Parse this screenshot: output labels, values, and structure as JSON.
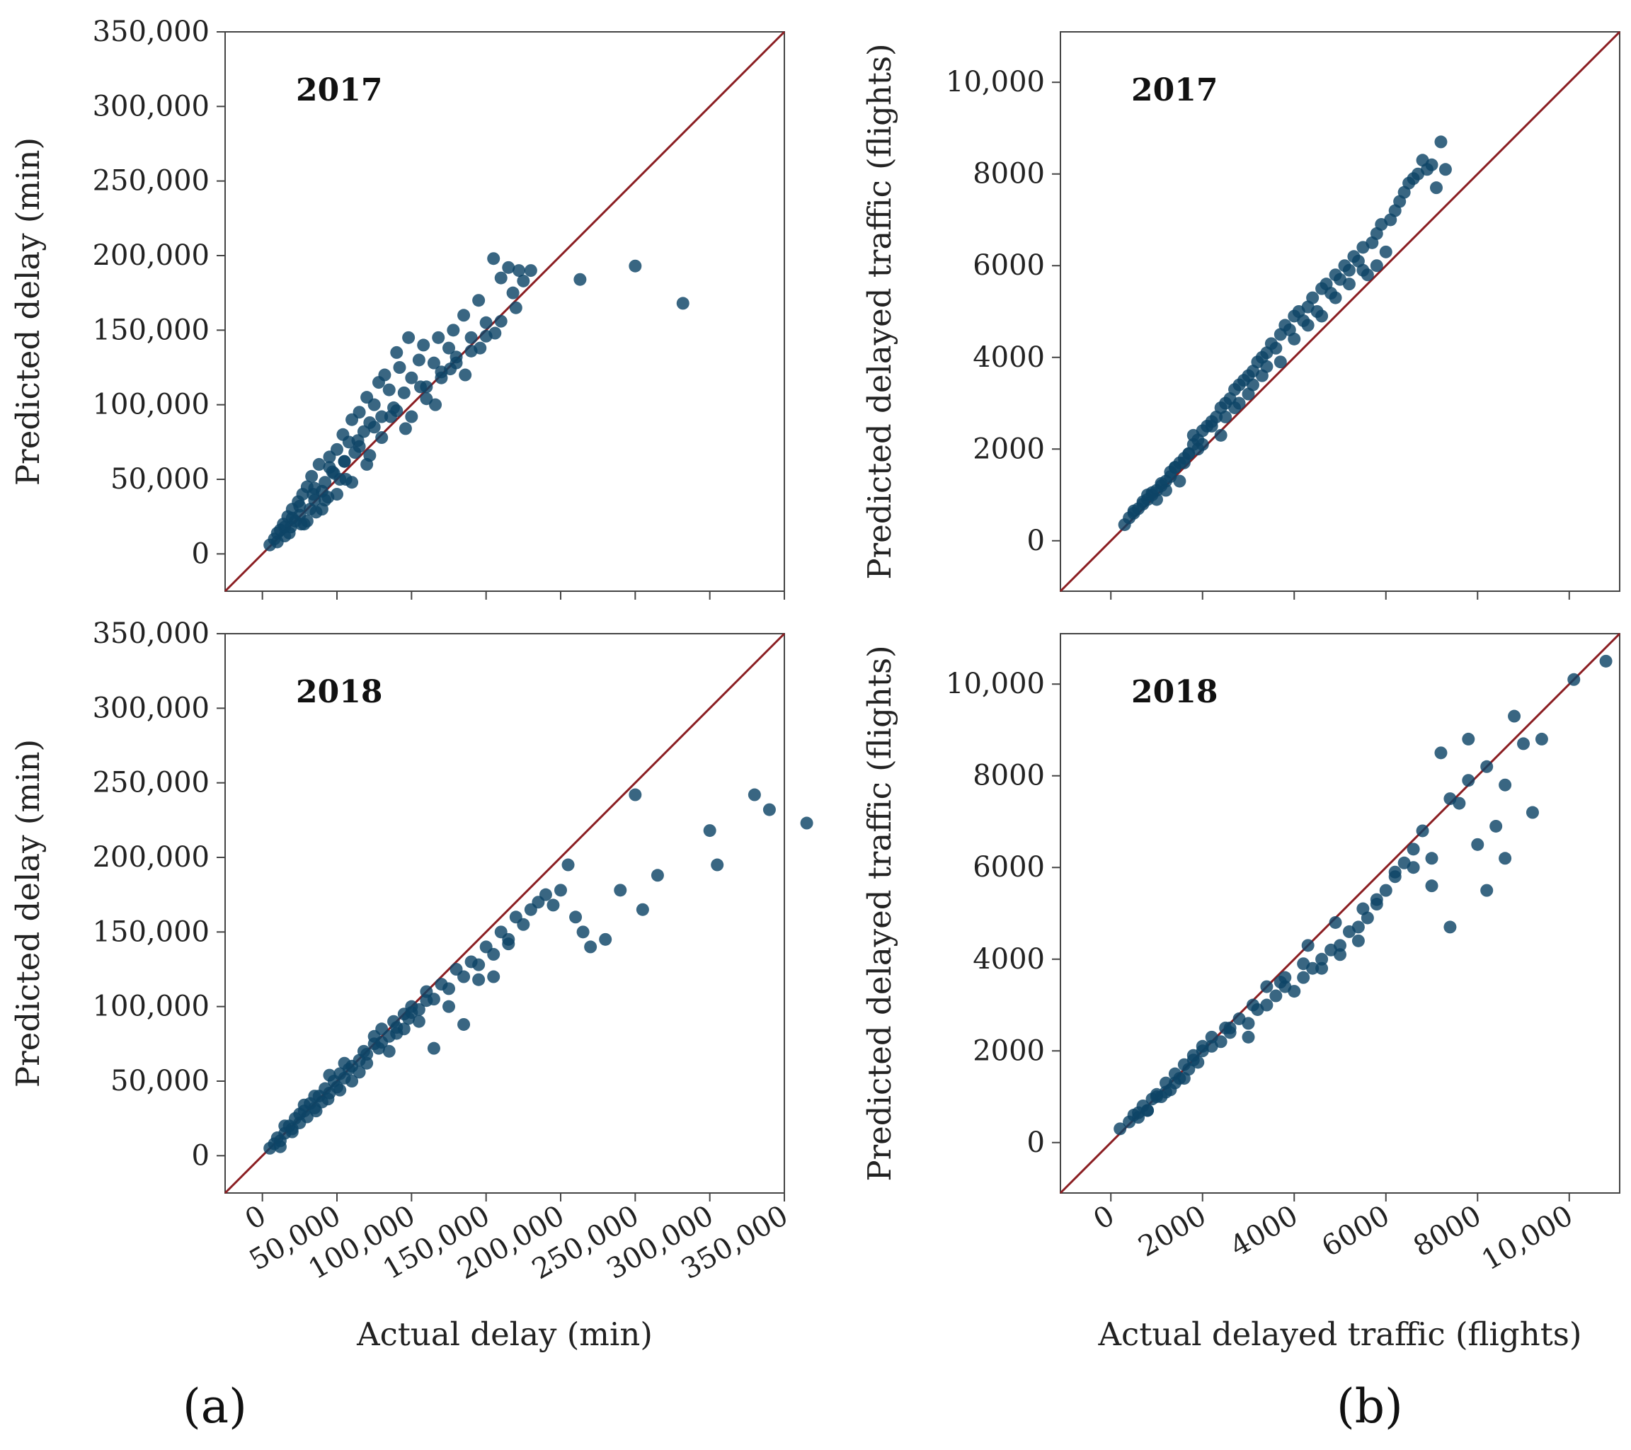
{
  "figure": {
    "panel_labels": [
      "(a)",
      "(b)"
    ],
    "colors": {
      "points": "#0d4466",
      "diagonal": "#8b1e22",
      "frame": "#444444"
    }
  },
  "chart_data": [
    {
      "type": "scatter",
      "id": "a-2017",
      "year_label": "2017",
      "ylabel": "Predicted delay (min)",
      "xlabel": "",
      "xlim": [
        -25000,
        350000
      ],
      "ylim": [
        -25000,
        350000
      ],
      "xticks": [
        0,
        50000,
        100000,
        150000,
        200000,
        250000,
        300000,
        350000
      ],
      "yticks": [
        0,
        50000,
        100000,
        150000,
        200000,
        250000,
        300000,
        350000
      ],
      "ytick_labels": [
        "0",
        "50,000",
        "100,000",
        "150,000",
        "200,000",
        "250,000",
        "300,000",
        "350,000"
      ],
      "xtick_labels": [],
      "diagonal": true,
      "x": [
        5000,
        8000,
        10000,
        12000,
        14000,
        15000,
        17000,
        19000,
        20000,
        22000,
        24000,
        25000,
        27000,
        28000,
        30000,
        32000,
        33000,
        35000,
        36000,
        38000,
        40000,
        42000,
        44000,
        45000,
        47000,
        50000,
        52000,
        54000,
        55000,
        58000,
        60000,
        62000,
        65000,
        68000,
        70000,
        72000,
        75000,
        78000,
        80000,
        82000,
        85000,
        88000,
        90000,
        92000,
        95000,
        98000,
        100000,
        105000,
        108000,
        110000,
        115000,
        118000,
        120000,
        125000,
        128000,
        130000,
        135000,
        140000,
        145000,
        150000,
        155000,
        160000,
        165000,
        168000,
        170000,
        172000,
        175000,
        180000,
        213000,
        250000,
        282000,
        15000,
        20000,
        25000,
        30000,
        35000,
        40000,
        45000,
        50000,
        55000,
        60000,
        65000,
        70000,
        75000,
        80000,
        90000,
        100000,
        110000,
        120000,
        130000,
        140000,
        150000,
        160000,
        10000,
        18000,
        26000,
        34000,
        42000,
        48000,
        56000,
        64000,
        72000,
        86000,
        96000,
        106000,
        116000,
        126000,
        136000,
        146000,
        156000
      ],
      "y": [
        6000,
        10000,
        14000,
        16000,
        20000,
        12000,
        25000,
        18000,
        30000,
        22000,
        35000,
        26000,
        40000,
        20000,
        45000,
        30000,
        52000,
        36000,
        28000,
        60000,
        42000,
        48000,
        38000,
        65000,
        55000,
        70000,
        50000,
        80000,
        62000,
        75000,
        90000,
        68000,
        95000,
        82000,
        105000,
        88000,
        100000,
        115000,
        92000,
        120000,
        110000,
        98000,
        135000,
        125000,
        108000,
        145000,
        118000,
        130000,
        140000,
        112000,
        128000,
        145000,
        122000,
        138000,
        150000,
        132000,
        160000,
        145000,
        170000,
        155000,
        198000,
        185000,
        192000,
        175000,
        165000,
        190000,
        183000,
        190000,
        184000,
        193000,
        168000,
        18000,
        24000,
        32000,
        22000,
        44000,
        30000,
        58000,
        40000,
        62000,
        48000,
        72000,
        60000,
        85000,
        78000,
        96000,
        92000,
        104000,
        118000,
        128000,
        136000,
        146000,
        156000,
        8000,
        14000,
        20000,
        40000,
        36000,
        54000,
        50000,
        76000,
        66000,
        92000,
        84000,
        112000,
        100000,
        124000,
        120000,
        138000,
        148000
      ]
    },
    {
      "type": "scatter",
      "id": "b-2017",
      "year_label": "2017",
      "ylabel": "Predicted delayed traffic (flights)",
      "xlabel": "",
      "xlim": [
        -1100,
        11100
      ],
      "ylim": [
        -1100,
        11100
      ],
      "xticks": [
        0,
        2000,
        4000,
        6000,
        8000,
        10000
      ],
      "yticks": [
        0,
        2000,
        4000,
        6000,
        8000,
        10000
      ],
      "ytick_labels": [
        "0",
        "2000",
        "4000",
        "6000",
        "8000",
        "10,000"
      ],
      "xtick_labels": [],
      "diagonal": true,
      "x": [
        300,
        400,
        500,
        600,
        700,
        800,
        900,
        1000,
        1100,
        1200,
        1300,
        1400,
        1500,
        1600,
        1700,
        1800,
        1900,
        2000,
        2100,
        2200,
        2300,
        2400,
        2500,
        2600,
        2700,
        2800,
        2900,
        3000,
        3100,
        3200,
        3300,
        3400,
        3500,
        3600,
        3700,
        3800,
        3900,
        4000,
        4100,
        4200,
        4300,
        4400,
        4500,
        4600,
        4700,
        4800,
        4900,
        5000,
        5100,
        5200,
        5300,
        5400,
        5500,
        5600,
        5700,
        5800,
        5900,
        6000,
        6100,
        6200,
        6300,
        6400,
        6500,
        6600,
        6700,
        6800,
        6900,
        7000,
        7100,
        7200,
        7300,
        500,
        700,
        900,
        1100,
        1300,
        1500,
        1700,
        1900,
        2200,
        2500,
        2800,
        3100,
        3400,
        3700,
        4000,
        4300,
        4600,
        4900,
        5200,
        5500,
        5800,
        800,
        1000,
        1200,
        1400,
        1600,
        1800,
        2000,
        2400,
        2700,
        3000,
        3300
      ],
      "y": [
        350,
        500,
        650,
        700,
        850,
        900,
        1050,
        1100,
        1250,
        1300,
        1500,
        1600,
        1700,
        1800,
        1900,
        2100,
        2200,
        2400,
        2500,
        2600,
        2700,
        2900,
        3000,
        3100,
        3300,
        3400,
        3500,
        3600,
        3700,
        3900,
        4000,
        4100,
        4300,
        4200,
        4500,
        4700,
        4600,
        4900,
        5000,
        4800,
        5100,
        5300,
        5000,
        5500,
        5600,
        5400,
        5800,
        5700,
        6000,
        5900,
        6200,
        6100,
        6400,
        5800,
        6500,
        6700,
        6900,
        6300,
        7000,
        7200,
        7400,
        7600,
        7800,
        7900,
        8000,
        8300,
        8100,
        8200,
        7700,
        8700,
        8100,
        600,
        800,
        1000,
        1200,
        1400,
        1300,
        1900,
        2000,
        2500,
        2700,
        3000,
        3400,
        3800,
        3900,
        4400,
        4700,
        4900,
        5300,
        5600,
        5900,
        6000,
        1000,
        900,
        1100,
        1600,
        1700,
        2300,
        2100,
        2300,
        2900,
        3200,
        3600
      ]
    },
    {
      "type": "scatter",
      "id": "a-2018",
      "year_label": "2018",
      "ylabel": "Predicted delay (min)",
      "xlabel": "Actual delay (min)",
      "xlim": [
        -25000,
        350000
      ],
      "ylim": [
        -25000,
        350000
      ],
      "xticks": [
        0,
        50000,
        100000,
        150000,
        200000,
        250000,
        300000,
        350000
      ],
      "yticks": [
        0,
        50000,
        100000,
        150000,
        200000,
        250000,
        300000,
        350000
      ],
      "ytick_labels": [
        "0",
        "50,000",
        "100,000",
        "150,000",
        "200,000",
        "250,000",
        "300,000",
        "350,000"
      ],
      "xtick_labels": [
        "0",
        "50,000",
        "100,000",
        "150,000",
        "200,000",
        "250,000",
        "300,000",
        "350,000"
      ],
      "diagonal": true,
      "x": [
        5000,
        8000,
        10000,
        12000,
        15000,
        18000,
        20000,
        22000,
        25000,
        28000,
        30000,
        32000,
        35000,
        38000,
        40000,
        42000,
        45000,
        48000,
        50000,
        52000,
        55000,
        58000,
        60000,
        65000,
        68000,
        70000,
        75000,
        78000,
        80000,
        85000,
        88000,
        90000,
        95000,
        98000,
        100000,
        105000,
        110000,
        115000,
        120000,
        125000,
        130000,
        135000,
        140000,
        145000,
        150000,
        155000,
        160000,
        165000,
        170000,
        175000,
        180000,
        185000,
        190000,
        195000,
        200000,
        205000,
        210000,
        215000,
        220000,
        230000,
        240000,
        250000,
        255000,
        265000,
        300000,
        305000,
        330000,
        340000,
        365000,
        15000,
        25000,
        35000,
        45000,
        55000,
        65000,
        75000,
        85000,
        95000,
        105000,
        115000,
        125000,
        135000,
        145000,
        155000,
        165000,
        12000,
        20000,
        28000,
        36000,
        44000,
        52000,
        60000,
        70000,
        80000,
        90000,
        100000,
        110000
      ],
      "y": [
        5000,
        8000,
        12000,
        10000,
        15000,
        20000,
        18000,
        25000,
        22000,
        30000,
        26000,
        35000,
        32000,
        40000,
        36000,
        45000,
        42000,
        50000,
        46000,
        55000,
        52000,
        58000,
        60000,
        64000,
        70000,
        68000,
        75000,
        72000,
        85000,
        80000,
        90000,
        86000,
        95000,
        92000,
        100000,
        98000,
        110000,
        105000,
        115000,
        112000,
        125000,
        120000,
        130000,
        128000,
        140000,
        135000,
        150000,
        142000,
        160000,
        155000,
        165000,
        170000,
        175000,
        168000,
        178000,
        195000,
        160000,
        150000,
        140000,
        145000,
        178000,
        242000,
        165000,
        188000,
        218000,
        195000,
        242000,
        232000,
        223000,
        20000,
        28000,
        40000,
        54000,
        62000,
        56000,
        80000,
        70000,
        85000,
        90000,
        72000,
        100000,
        88000,
        118000,
        120000,
        145000,
        6000,
        16000,
        34000,
        30000,
        38000,
        44000,
        50000,
        62000,
        76000,
        82000,
        96000,
        104000
      ]
    },
    {
      "type": "scatter",
      "id": "b-2018",
      "year_label": "2018",
      "ylabel": "Predicted delayed traffic (flights)",
      "xlabel": "Actual delayed traffic (flights)",
      "xlim": [
        -1100,
        11100
      ],
      "ylim": [
        -1100,
        11100
      ],
      "xticks": [
        0,
        2000,
        4000,
        6000,
        8000,
        10000
      ],
      "yticks": [
        0,
        2000,
        4000,
        6000,
        8000,
        10000
      ],
      "ytick_labels": [
        "0",
        "2000",
        "4000",
        "6000",
        "8000",
        "10,000"
      ],
      "xtick_labels": [
        "0",
        "2000",
        "4000",
        "6000",
        "8000",
        "10,000"
      ],
      "diagonal": true,
      "x": [
        200,
        400,
        500,
        600,
        700,
        800,
        900,
        1000,
        1100,
        1200,
        1300,
        1400,
        1500,
        1600,
        1700,
        1800,
        1900,
        2000,
        2200,
        2400,
        2600,
        2800,
        3000,
        3200,
        3400,
        3600,
        3800,
        4000,
        4200,
        4400,
        4600,
        4800,
        5000,
        5200,
        5400,
        5600,
        5800,
        6000,
        6200,
        6400,
        6600,
        6800,
        7000,
        7200,
        7400,
        7600,
        7800,
        8000,
        8200,
        8400,
        8600,
        8800,
        9000,
        9200,
        9400,
        10100,
        10800,
        600,
        1000,
        1400,
        1800,
        2200,
        2600,
        3000,
        3400,
        3800,
        4200,
        4600,
        5000,
        5400,
        5800,
        6200,
        6600,
        7000,
        7400,
        7800,
        8200,
        8600,
        800,
        1200,
        1600,
        2000,
        2500,
        3100,
        3700,
        4300,
        4900,
        5500
      ],
      "y": [
        300,
        450,
        600,
        550,
        800,
        700,
        950,
        1050,
        1000,
        1300,
        1150,
        1500,
        1400,
        1700,
        1600,
        1900,
        1750,
        2100,
        2300,
        2200,
        2500,
        2700,
        2600,
        2900,
        3000,
        3200,
        3400,
        3300,
        3600,
        3800,
        4000,
        4200,
        4100,
        4600,
        4400,
        4900,
        5200,
        5500,
        5800,
        6100,
        6400,
        6800,
        6200,
        8500,
        4700,
        7400,
        7900,
        6500,
        8200,
        6900,
        7800,
        9300,
        8700,
        7200,
        8800,
        10100,
        10500,
        650,
        1000,
        1300,
        1800,
        2100,
        2400,
        2300,
        3400,
        3600,
        3900,
        3800,
        4300,
        4700,
        5300,
        5900,
        6000,
        5600,
        7500,
        8800,
        5500,
        6200,
        700,
        1100,
        1400,
        2000,
        2500,
        3000,
        3500,
        4300,
        4800,
        5100
      ]
    }
  ]
}
